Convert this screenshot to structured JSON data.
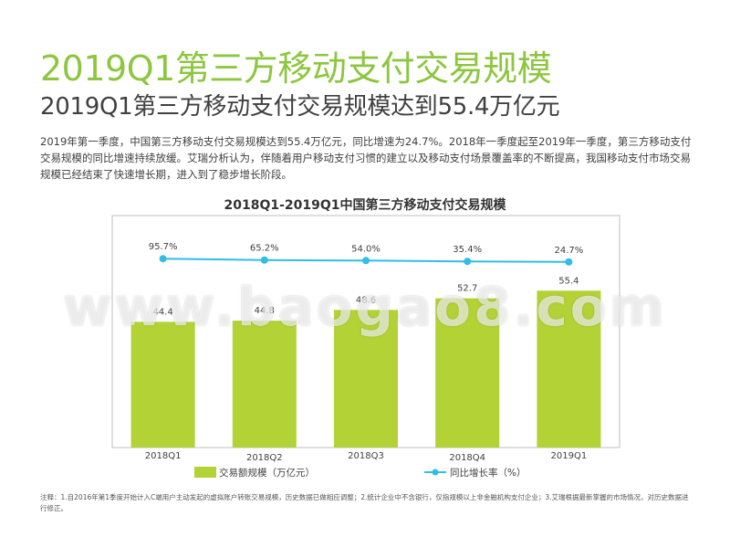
{
  "page": {
    "title": "2019Q1第三方移动支付交易规模",
    "subtitle": "2019Q1第三方移动支付交易规模达到55.4万亿元",
    "description": "2019年第一季度，中国第三方移动支付交易规模达到55.4万亿元，同比增速为24.7%。2018年一季度起至2019年一季度，第三方移动支付交易规模的同比增速持续放缓。艾瑞分析认为，伴随着用户移动支付习惯的建立以及移动支付场景覆盖率的不断提高，我国移动支付市场交易规模已经结束了快速增长期，进入到了稳步增长阶段。",
    "note": "注释：1.自2016年第1季度开始计入C端用户主动发起的虚拟账户转账交易规模，历史数据已做相应调整；2.统计企业中不含银行，仅指规模以上非金融机构支付企业；3.艾瑞根据最新掌握的市场情况，对历史数据进行修正。",
    "watermark": "www.baogao8.com"
  },
  "chart_data": {
    "type": "bar",
    "title": "2018Q1-2019Q1中国第三方移动支付交易规模",
    "categories": [
      "2018Q1",
      "2018Q2",
      "2018Q3",
      "2018Q4",
      "2019Q1"
    ],
    "series": [
      {
        "name": "交易额规模（万亿元）",
        "type": "bar",
        "values": [
          44.4,
          44.8,
          48.6,
          52.7,
          55.4
        ],
        "labels": [
          "44.4",
          "44.8",
          "48.6",
          "52.7",
          "55.4"
        ],
        "color": "#b2d235"
      },
      {
        "name": "同比增长率（%）",
        "type": "line",
        "values": [
          95.7,
          65.2,
          54.0,
          35.4,
          24.7
        ],
        "labels": [
          "95.7%",
          "65.2%",
          "54.0%",
          "35.4%",
          "24.7%"
        ],
        "color": "#31bde6"
      }
    ],
    "ylim": [
      0,
      100
    ],
    "grid": false,
    "legend": "bottom"
  }
}
